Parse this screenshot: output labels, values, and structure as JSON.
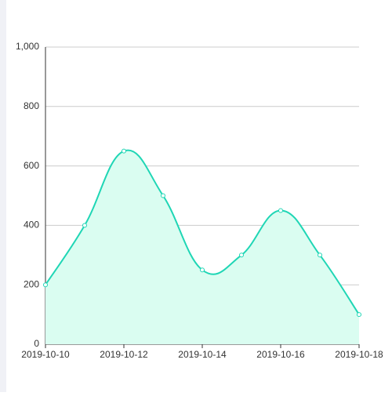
{
  "chart_data": {
    "type": "area",
    "categories": [
      "2019-10-10",
      null,
      "2019-10-12",
      null,
      "2019-10-14",
      null,
      "2019-10-16",
      null,
      "2019-10-18"
    ],
    "values": [
      200,
      400,
      650,
      500,
      250,
      300,
      450,
      300,
      100
    ],
    "color": "#1fd6b5",
    "fill": "#dafdf1",
    "ylim": [
      0,
      1000
    ],
    "yticks": [
      0,
      200,
      400,
      600,
      800,
      {
        "value": 1000,
        "label": "1,000"
      }
    ],
    "grid": true,
    "smooth": true
  }
}
